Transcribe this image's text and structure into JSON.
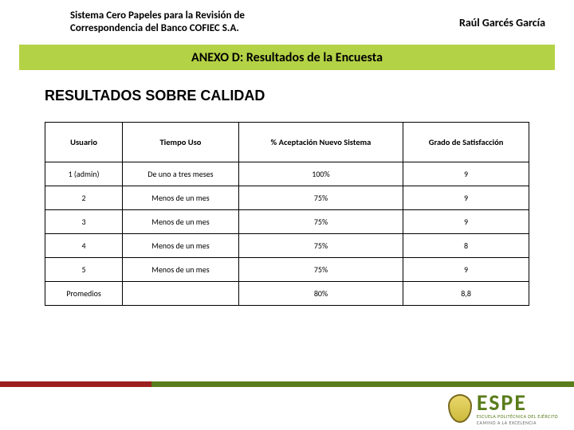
{
  "header": {
    "title_line1": "Sistema Cero Papeles para la Revisión de",
    "title_line2": "Correspondencia del Banco COFIEC S.A.",
    "author": "Raúl Garcés García"
  },
  "annex_title": "ANEXO D: Resultados de la Encuesta",
  "section_title": "RESULTADOS SOBRE CALIDAD",
  "table": {
    "columns": [
      "Usuario",
      "Tiempo Uso",
      "% Aceptación Nuevo Sistema",
      "Grado de Satisfacción"
    ],
    "rows": [
      [
        "1 (admin)",
        "De uno a tres meses",
        "100%",
        "9"
      ],
      [
        "2",
        "Menos de un mes",
        "75%",
        "9"
      ],
      [
        "3",
        "Menos de un mes",
        "75%",
        "9"
      ],
      [
        "4",
        "Menos de un mes",
        "75%",
        "8"
      ],
      [
        "5",
        "Menos de un mes",
        "75%",
        "9"
      ],
      [
        "Promedios",
        "",
        "80%",
        "8,8"
      ]
    ]
  },
  "footer": {
    "brand": "ESPE",
    "sub": "ESCUELA POLITÉCNICA DEL EJÉRCITO",
    "tag": "CAMINO A LA EXCELENCIA",
    "stripe_green": "#5a7d1c",
    "stripe_red": "#9c1f1f"
  }
}
